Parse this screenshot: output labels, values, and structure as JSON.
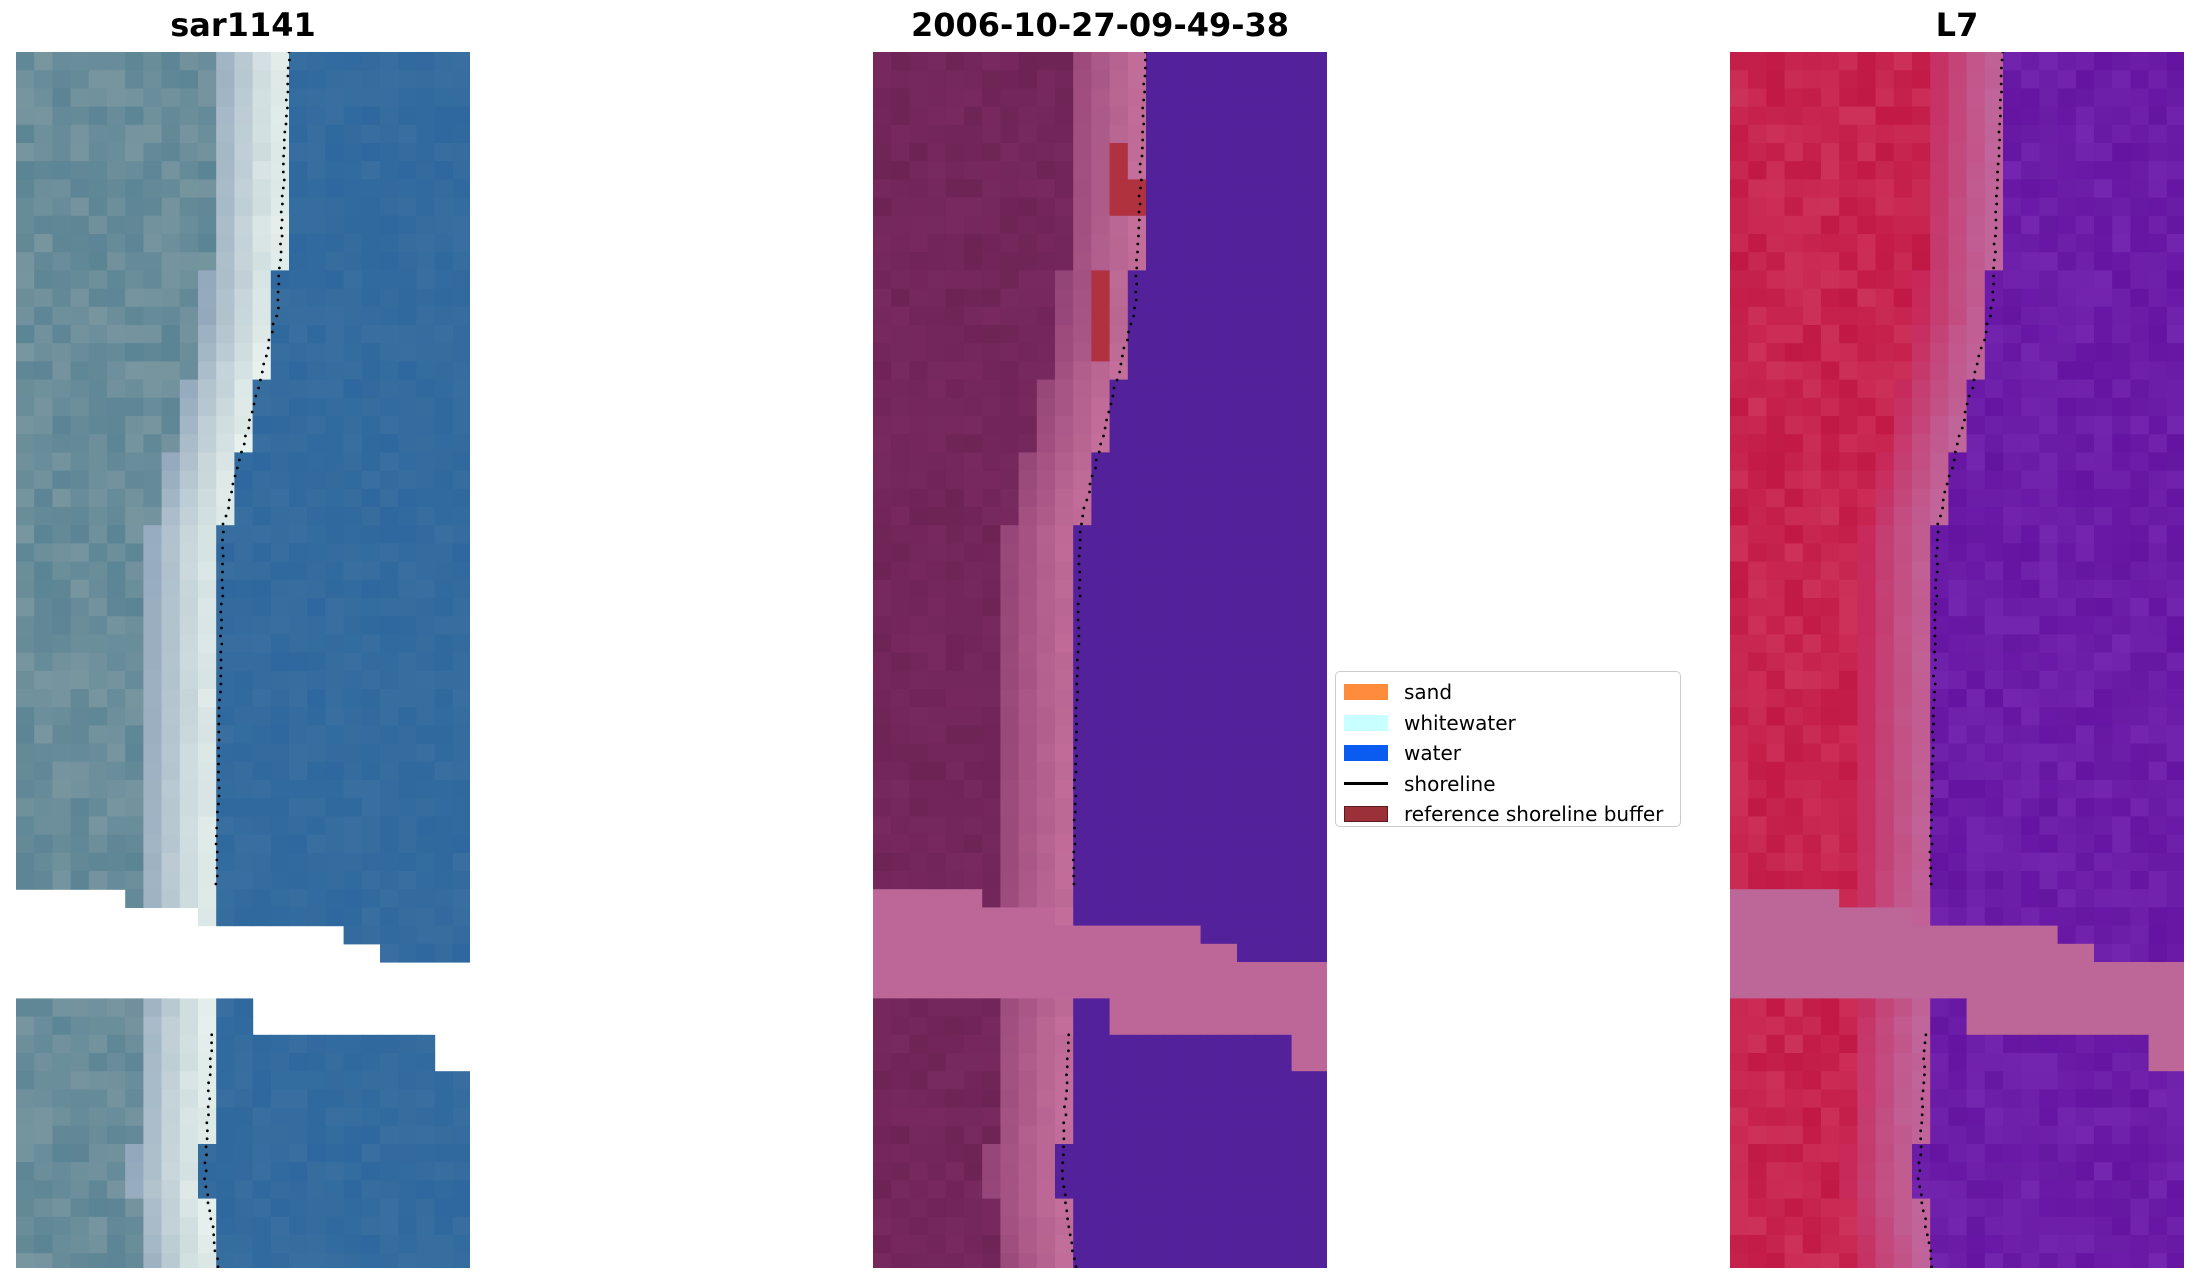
{
  "panels": [
    {
      "title": "sar1141"
    },
    {
      "title": "2006-10-27-09-49-38"
    },
    {
      "title": "L7"
    }
  ],
  "legend": {
    "items": [
      {
        "label": "sand",
        "color": "#ff8c3c"
      },
      {
        "label": "whitewater",
        "color": "#c8ffff"
      },
      {
        "label": "water",
        "color": "#0a5cf0"
      },
      {
        "label": "shoreline",
        "color": "#000000"
      },
      {
        "label": "reference shoreline buffer",
        "color": "#9b3039"
      }
    ]
  },
  "colors": {
    "sar_land": "#5b8494",
    "sar_beach": "#e8f2ee",
    "sar_water": "#2e689e",
    "class_land": "#782a5f",
    "class_beach": "#c5709c",
    "class_water": "#53219a",
    "class_buffer": "#b03140",
    "mndwi_land": "#c11845",
    "mndwi_beach": "#c0689e",
    "mndwi_water": "#6414a0",
    "nodata_band": "#bd6698"
  }
}
